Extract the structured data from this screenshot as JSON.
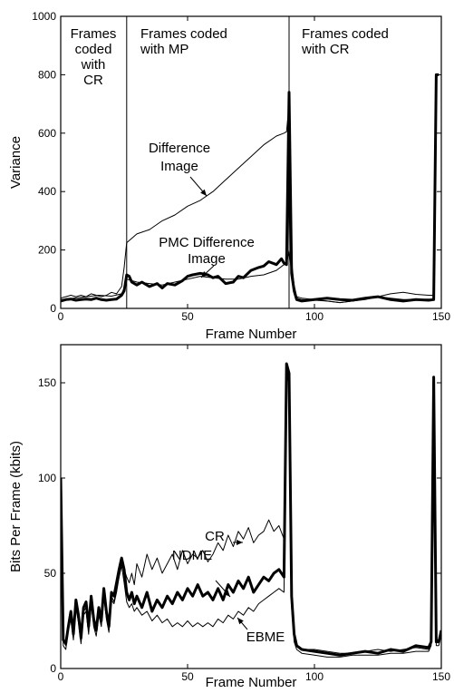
{
  "chart_data": [
    {
      "type": "line",
      "xlabel": "Frame Number",
      "ylabel": "Variance",
      "xlim": [
        0,
        150
      ],
      "ylim": [
        0,
        1000
      ],
      "x_ticks": [
        0,
        50,
        100,
        150
      ],
      "y_ticks": [
        0,
        200,
        400,
        600,
        800,
        1000
      ],
      "grid": false,
      "regions": [
        {
          "label_lines": [
            "Frames",
            "coded",
            "with",
            "CR"
          ],
          "x_start": 0,
          "x_end": 26
        },
        {
          "label_lines": [
            "Frames coded",
            "with MP"
          ],
          "x_start": 26,
          "x_end": 90
        },
        {
          "label_lines": [
            "Frames coded",
            "with CR"
          ],
          "x_start": 90,
          "x_end": 150
        }
      ],
      "annotations": [
        {
          "lines": [
            "Difference",
            "Image"
          ],
          "target": "Difference Image"
        },
        {
          "lines": [
            "PMC Difference",
            "Image"
          ],
          "target": "PMC Difference Image"
        }
      ],
      "series": [
        {
          "name": "Difference Image",
          "width": 1,
          "x": [
            0,
            2,
            4,
            6,
            8,
            10,
            12,
            14,
            16,
            18,
            20,
            22,
            24,
            25,
            26,
            28,
            30,
            35,
            40,
            45,
            50,
            55,
            60,
            65,
            70,
            75,
            80,
            85,
            88,
            89,
            90,
            91,
            92,
            93,
            95,
            100,
            105,
            110,
            115,
            120,
            125,
            130,
            135,
            140,
            145,
            147,
            148,
            149
          ],
          "y": [
            35,
            40,
            45,
            40,
            45,
            40,
            50,
            45,
            40,
            45,
            55,
            50,
            75,
            140,
            225,
            240,
            255,
            270,
            300,
            320,
            350,
            370,
            400,
            440,
            480,
            520,
            560,
            590,
            600,
            605,
            700,
            160,
            80,
            40,
            35,
            30,
            25,
            20,
            25,
            30,
            40,
            50,
            55,
            48,
            45,
            45,
            800,
            800
          ]
        },
        {
          "name": "PMC Difference Image",
          "width": 3,
          "x": [
            0,
            2,
            4,
            6,
            8,
            10,
            12,
            14,
            16,
            18,
            20,
            22,
            24,
            25,
            26,
            27,
            28,
            30,
            32,
            35,
            38,
            40,
            42,
            45,
            48,
            50,
            52,
            55,
            58,
            60,
            62,
            65,
            68,
            70,
            72,
            75,
            78,
            80,
            82,
            85,
            87,
            88,
            89,
            90,
            91,
            92,
            93,
            95,
            100,
            105,
            110,
            115,
            120,
            125,
            130,
            135,
            140,
            145,
            147,
            148,
            149
          ],
          "y": [
            25,
            30,
            32,
            28,
            30,
            32,
            30,
            35,
            30,
            28,
            30,
            32,
            45,
            60,
            115,
            110,
            90,
            80,
            90,
            75,
            85,
            70,
            85,
            80,
            95,
            110,
            115,
            120,
            115,
            105,
            110,
            85,
            90,
            110,
            105,
            130,
            140,
            145,
            160,
            150,
            170,
            155,
            150,
            740,
            120,
            60,
            30,
            25,
            30,
            35,
            30,
            28,
            35,
            40,
            30,
            25,
            30,
            28,
            30,
            800,
            800
          ]
        },
        {
          "name": "",
          "width": 1,
          "x": [
            0,
            5,
            10,
            15,
            20,
            24,
            25,
            26,
            28,
            30,
            35,
            40,
            45,
            50,
            55,
            60,
            65,
            70,
            75,
            80,
            85,
            88,
            89,
            90,
            91,
            92,
            93,
            95,
            100,
            105,
            110,
            115,
            120,
            125,
            130,
            135,
            140,
            145,
            147,
            148,
            149
          ],
          "y": [
            30,
            35,
            40,
            45,
            42,
            50,
            70,
            100,
            95,
            90,
            85,
            80,
            90,
            100,
            110,
            105,
            100,
            100,
            110,
            115,
            130,
            150,
            150,
            200,
            120,
            60,
            35,
            30,
            28,
            25,
            20,
            25,
            35,
            40,
            35,
            30,
            30,
            32,
            30,
            800,
            800
          ]
        }
      ]
    },
    {
      "type": "line",
      "xlabel": "Frame Number",
      "ylabel": "Bits Per Frame (kbits)",
      "xlim": [
        0,
        150
      ],
      "ylim": [
        0,
        170
      ],
      "x_ticks": [
        0,
        50,
        100,
        150
      ],
      "y_ticks": [
        0,
        50,
        100,
        150
      ],
      "grid": false,
      "annotations": [
        {
          "lines": [
            "CR"
          ],
          "target": "CR"
        },
        {
          "lines": [
            "NDME"
          ],
          "target": "NDME"
        },
        {
          "lines": [
            "EBME"
          ],
          "target": "EBME"
        }
      ],
      "series": [
        {
          "name": "CR",
          "width": 1,
          "x": [
            0,
            1,
            2,
            3,
            4,
            5,
            6,
            7,
            8,
            9,
            10,
            11,
            12,
            13,
            14,
            15,
            16,
            17,
            18,
            19,
            20,
            21,
            22,
            23,
            24,
            25,
            26,
            27,
            28,
            29,
            30,
            32,
            34,
            36,
            38,
            40,
            42,
            44,
            46,
            48,
            50,
            52,
            54,
            56,
            58,
            60,
            62,
            64,
            66,
            68,
            70,
            72,
            74,
            76,
            78,
            80,
            82,
            84,
            86,
            88,
            89,
            90,
            91,
            92,
            93,
            95,
            100,
            105,
            110,
            115,
            120,
            125,
            130,
            135,
            140,
            145,
            146,
            147,
            148,
            149,
            150
          ],
          "y": [
            100,
            15,
            12,
            20,
            28,
            18,
            34,
            26,
            15,
            30,
            32,
            20,
            36,
            25,
            20,
            30,
            24,
            40,
            28,
            22,
            38,
            35,
            42,
            48,
            55,
            52,
            48,
            45,
            50,
            44,
            55,
            48,
            60,
            52,
            58,
            50,
            55,
            60,
            52,
            62,
            55,
            60,
            58,
            62,
            56,
            60,
            66,
            62,
            70,
            64,
            72,
            68,
            74,
            66,
            70,
            72,
            78,
            72,
            75,
            68,
            155,
            150,
            40,
            20,
            12,
            10,
            10,
            9,
            8,
            8,
            9,
            10,
            9,
            10,
            11,
            10,
            15,
            150,
            15,
            15,
            20
          ]
        },
        {
          "name": "NDME",
          "width": 3,
          "x": [
            0,
            1,
            2,
            3,
            4,
            5,
            6,
            7,
            8,
            9,
            10,
            11,
            12,
            13,
            14,
            15,
            16,
            17,
            18,
            19,
            20,
            21,
            22,
            23,
            24,
            25,
            26,
            27,
            28,
            29,
            30,
            32,
            34,
            36,
            38,
            40,
            42,
            44,
            46,
            48,
            50,
            52,
            54,
            56,
            58,
            60,
            62,
            64,
            66,
            68,
            70,
            72,
            74,
            76,
            78,
            80,
            82,
            84,
            86,
            88,
            89,
            90,
            91,
            92,
            93,
            95,
            100,
            105,
            110,
            115,
            120,
            125,
            130,
            135,
            140,
            145,
            146,
            147,
            148,
            149,
            150
          ],
          "y": [
            100,
            15,
            13,
            22,
            30,
            18,
            36,
            28,
            16,
            32,
            35,
            22,
            38,
            26,
            20,
            32,
            25,
            42,
            30,
            22,
            40,
            38,
            45,
            52,
            58,
            52,
            40,
            36,
            40,
            34,
            38,
            32,
            40,
            30,
            36,
            32,
            38,
            34,
            40,
            36,
            42,
            38,
            44,
            38,
            40,
            36,
            42,
            36,
            44,
            40,
            46,
            42,
            48,
            40,
            44,
            48,
            46,
            50,
            52,
            48,
            160,
            155,
            38,
            18,
            12,
            10,
            9,
            8,
            7,
            8,
            9,
            8,
            10,
            9,
            12,
            11,
            14,
            153,
            14,
            14,
            20
          ]
        },
        {
          "name": "EBME",
          "width": 1,
          "x": [
            0,
            1,
            2,
            3,
            4,
            5,
            6,
            7,
            8,
            9,
            10,
            11,
            12,
            13,
            14,
            15,
            16,
            17,
            18,
            19,
            20,
            21,
            22,
            23,
            24,
            25,
            26,
            27,
            28,
            29,
            30,
            32,
            34,
            36,
            38,
            40,
            42,
            44,
            46,
            48,
            50,
            52,
            54,
            56,
            58,
            60,
            62,
            64,
            66,
            68,
            70,
            72,
            74,
            76,
            78,
            80,
            82,
            84,
            86,
            88,
            89,
            90,
            91,
            92,
            93,
            95,
            100,
            105,
            110,
            115,
            120,
            125,
            130,
            135,
            140,
            145,
            146,
            147,
            148,
            149,
            150
          ],
          "y": [
            95,
            12,
            10,
            20,
            26,
            15,
            32,
            24,
            13,
            28,
            30,
            18,
            34,
            22,
            17,
            28,
            22,
            38,
            26,
            19,
            36,
            34,
            40,
            48,
            54,
            45,
            35,
            32,
            34,
            30,
            32,
            28,
            30,
            25,
            28,
            24,
            26,
            22,
            24,
            22,
            25,
            22,
            24,
            22,
            24,
            22,
            26,
            24,
            28,
            26,
            30,
            28,
            32,
            30,
            34,
            36,
            38,
            40,
            42,
            40,
            155,
            150,
            32,
            14,
            10,
            8,
            7,
            6,
            6,
            7,
            7,
            7,
            8,
            8,
            9,
            9,
            12,
            148,
            12,
            12,
            18
          ]
        }
      ]
    }
  ]
}
